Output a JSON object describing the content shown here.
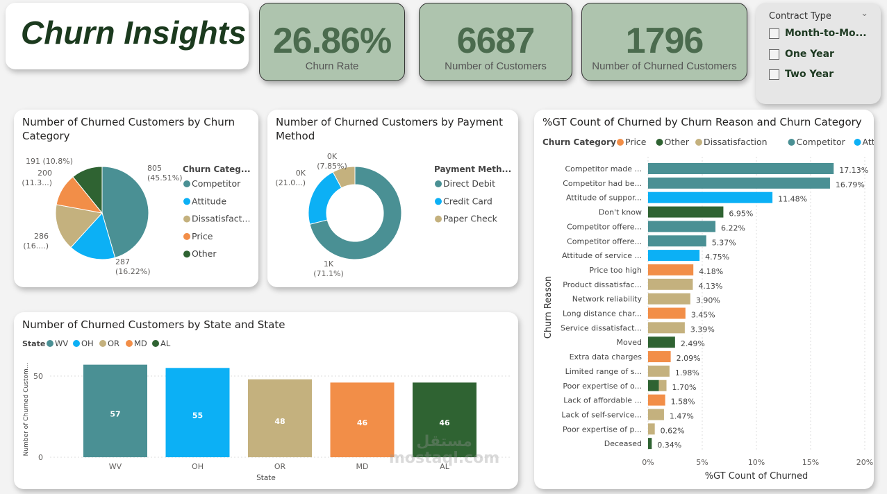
{
  "header": {
    "title": "Churn Insights"
  },
  "kpis": [
    {
      "value": "26.86%",
      "label": "Churn Rate"
    },
    {
      "value": "6687",
      "label": "Number of Customers"
    },
    {
      "value": "1796",
      "label": "Number of Churned Customers"
    }
  ],
  "slicer": {
    "title": "Contract Type",
    "options": [
      "Month-to-Mo...",
      "One Year",
      "Two Year"
    ],
    "checked": [
      false,
      false,
      false
    ]
  },
  "colors": {
    "Competitor": "#4a9094",
    "Attitude": "#0cb0f5",
    "Dissatisfaction": "#c4b17e",
    "Price": "#f28e48",
    "Other": "#2f6332",
    "Direct Debit": "#4a9094",
    "Credit Card": "#0cb0f5",
    "Paper Check": "#c4b17e",
    "WV": "#4a9094",
    "OH": "#0cb0f5",
    "OR": "#c4b17e",
    "MD": "#f28e48",
    "AL": "#2f6332"
  },
  "watermark": "مستقل mostaql.com",
  "chart_data": [
    {
      "type": "pie",
      "title": "Number of Churned Customers by Churn Category",
      "legend_title": "Churn Categ...",
      "legend_placement": "right",
      "legend": [
        "Competitor",
        "Attitude",
        "Dissatisfact...",
        "Price",
        "Other"
      ],
      "slices": [
        {
          "name": "Competitor",
          "value": 805,
          "pct": 45.51,
          "label": "805",
          "label2": "(45.51%)"
        },
        {
          "name": "Attitude",
          "value": 287,
          "pct": 16.22,
          "label": "287",
          "label2": "(16.22%)"
        },
        {
          "name": "Dissatisfaction",
          "value": 286,
          "pct": 16.17,
          "label": "286",
          "label2": "(16....)"
        },
        {
          "name": "Price",
          "value": 200,
          "pct": 11.3,
          "label": "200",
          "label2": "(11.3...)"
        },
        {
          "name": "Other",
          "value": 191,
          "pct": 10.8,
          "label": "191 (10.8%)",
          "label2": ""
        }
      ]
    },
    {
      "type": "pie",
      "donut": true,
      "title": "Number of Churned Customers by Payment Method",
      "legend_title": "Payment Meth...",
      "legend_placement": "right",
      "legend": [
        "Direct Debit",
        "Credit Card",
        "Paper Check"
      ],
      "slices": [
        {
          "name": "Direct Debit",
          "pct": 71.1,
          "label": "1K",
          "label2": "(71.1%)"
        },
        {
          "name": "Credit Card",
          "pct": 21.05,
          "label": "0K",
          "label2": "(21.0...)"
        },
        {
          "name": "Paper Check",
          "pct": 7.85,
          "label": "0K",
          "label2": "(7.85%)"
        }
      ]
    },
    {
      "type": "bar",
      "title": "Number of Churned Customers by State and State",
      "legend_title": "State",
      "legend_placement": "top-left",
      "categories": [
        "WV",
        "OH",
        "OR",
        "MD",
        "AL"
      ],
      "values": [
        57,
        55,
        48,
        46,
        46
      ],
      "xlabel": "State",
      "ylabel": "Number of Churned Custom...",
      "yticks": [
        0,
        50
      ],
      "ylim": [
        0,
        60
      ],
      "grid": true
    },
    {
      "type": "bar",
      "orientation": "horizontal",
      "stacked": true,
      "title": "%GT Count of Churned by Churn Reason and Churn Category",
      "legend_title": "Churn Category",
      "legend": [
        "Price",
        "Other",
        "Dissatisfaction",
        "Competitor",
        "Attitude"
      ],
      "legend_placement": "top-left",
      "xlabel": "%GT Count of Churned",
      "ylabel": "Churn Reason",
      "xticks": [
        "0%",
        "5%",
        "10%",
        "15%",
        "20%"
      ],
      "xlim": [
        0,
        20
      ],
      "grid": true,
      "rows": [
        {
          "reason": "Competitor made ...",
          "total": "17.13%",
          "parts": [
            [
              "Competitor",
              17.13
            ]
          ]
        },
        {
          "reason": "Competitor had be...",
          "total": "16.79%",
          "parts": [
            [
              "Competitor",
              16.79
            ]
          ]
        },
        {
          "reason": "Attitude of suppor...",
          "total": "11.48%",
          "parts": [
            [
              "Attitude",
              11.48
            ]
          ]
        },
        {
          "reason": "Don't know",
          "total": "6.95%",
          "parts": [
            [
              "Other",
              6.95
            ]
          ]
        },
        {
          "reason": "Competitor offere...",
          "total": "6.22%",
          "parts": [
            [
              "Competitor",
              6.22
            ]
          ]
        },
        {
          "reason": "Competitor offere...",
          "total": "5.37%",
          "parts": [
            [
              "Competitor",
              5.37
            ]
          ]
        },
        {
          "reason": "Attitude of service ...",
          "total": "4.75%",
          "parts": [
            [
              "Attitude",
              4.75
            ]
          ]
        },
        {
          "reason": "Price too high",
          "total": "4.18%",
          "parts": [
            [
              "Price",
              4.18
            ]
          ]
        },
        {
          "reason": "Product dissatisfac...",
          "total": "4.13%",
          "parts": [
            [
              "Dissatisfaction",
              4.13
            ]
          ]
        },
        {
          "reason": "Network reliability",
          "total": "3.90%",
          "parts": [
            [
              "Dissatisfaction",
              3.9
            ]
          ]
        },
        {
          "reason": "Long distance char...",
          "total": "3.45%",
          "parts": [
            [
              "Price",
              3.45
            ]
          ]
        },
        {
          "reason": "Service dissatisfact...",
          "total": "3.39%",
          "parts": [
            [
              "Dissatisfaction",
              3.39
            ]
          ]
        },
        {
          "reason": "Moved",
          "total": "2.49%",
          "parts": [
            [
              "Other",
              2.49
            ]
          ]
        },
        {
          "reason": "Extra data charges",
          "total": "2.09%",
          "parts": [
            [
              "Price",
              2.09
            ]
          ]
        },
        {
          "reason": "Limited range of s...",
          "total": "1.98%",
          "parts": [
            [
              "Dissatisfaction",
              1.98
            ]
          ]
        },
        {
          "reason": "Poor expertise of o...",
          "total": "1.70%",
          "parts": [
            [
              "Other",
              1.0
            ],
            [
              "Dissatisfaction",
              0.7
            ]
          ]
        },
        {
          "reason": "Lack of affordable ...",
          "total": "1.58%",
          "parts": [
            [
              "Price",
              1.58
            ]
          ]
        },
        {
          "reason": "Lack of self-service...",
          "total": "1.47%",
          "parts": [
            [
              "Dissatisfaction",
              1.47
            ]
          ]
        },
        {
          "reason": "Poor expertise of p...",
          "total": "0.62%",
          "parts": [
            [
              "Dissatisfaction",
              0.62
            ]
          ]
        },
        {
          "reason": "Deceased",
          "total": "0.34%",
          "parts": [
            [
              "Other",
              0.34
            ]
          ]
        }
      ]
    }
  ]
}
